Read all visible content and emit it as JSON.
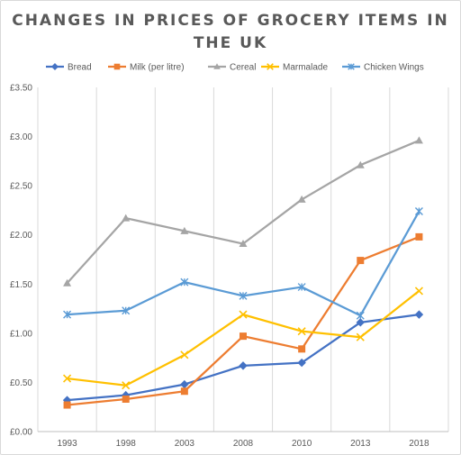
{
  "chart_data": {
    "type": "line",
    "title_lines": [
      "CHANGES IN PRICES OF GROCERY ITEMS IN",
      "THE UK"
    ],
    "categories": [
      "1993",
      "1998",
      "2003",
      "2008",
      "2010",
      "2013",
      "2018"
    ],
    "y_ticks": [
      "£0.00",
      "£0.50",
      "£1.00",
      "£1.50",
      "£2.00",
      "£2.50",
      "£3.00",
      "£3.50"
    ],
    "ylim": [
      0,
      3.5
    ],
    "grid": "vertical gridlines on",
    "legend_position": "top",
    "series": [
      {
        "name": "Bread",
        "color": "#4472c4",
        "marker": "diamond",
        "values": [
          0.32,
          0.37,
          0.48,
          0.67,
          0.7,
          1.11,
          1.19
        ]
      },
      {
        "name": "Milk (per litre)",
        "color": "#ed7d31",
        "marker": "square",
        "values": [
          0.27,
          0.33,
          0.41,
          0.97,
          0.84,
          1.74,
          1.98
        ]
      },
      {
        "name": "Cereal",
        "color": "#a5a5a5",
        "marker": "triangle",
        "values": [
          1.51,
          2.17,
          2.04,
          1.91,
          2.36,
          2.71,
          2.96
        ]
      },
      {
        "name": "Marmalade",
        "color": "#ffc000",
        "marker": "x",
        "values": [
          0.54,
          0.47,
          0.78,
          1.19,
          1.02,
          0.96,
          1.43
        ]
      },
      {
        "name": "Chicken Wings",
        "color": "#5b9bd5",
        "marker": "star",
        "values": [
          1.19,
          1.23,
          1.52,
          1.38,
          1.47,
          1.18,
          2.24
        ]
      }
    ]
  }
}
